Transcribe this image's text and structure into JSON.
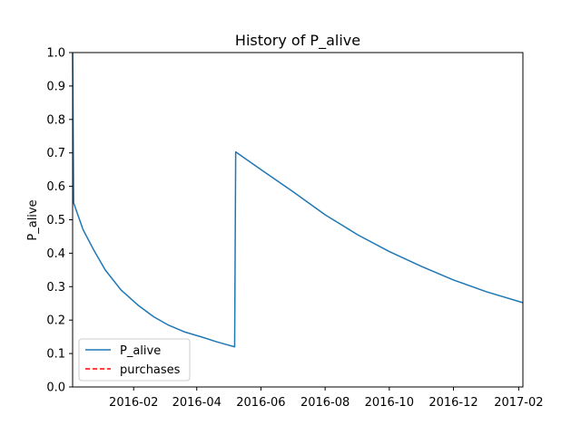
{
  "chart_data": {
    "type": "line",
    "title": "History of P_alive",
    "xlabel": "",
    "ylabel": "P_alive",
    "x_axis_type": "date",
    "xlim": [
      "2015-12-05",
      "2017-02-05"
    ],
    "ylim": [
      0,
      1
    ],
    "grid": false,
    "legend_position": "lower-left",
    "x_ticks": [
      {
        "date": "2016-02-01",
        "label": "2016-02"
      },
      {
        "date": "2016-04-01",
        "label": "2016-04"
      },
      {
        "date": "2016-06-01",
        "label": "2016-06"
      },
      {
        "date": "2016-08-01",
        "label": "2016-08"
      },
      {
        "date": "2016-10-01",
        "label": "2016-10"
      },
      {
        "date": "2016-12-01",
        "label": "2016-12"
      },
      {
        "date": "2017-02-01",
        "label": "2017-02"
      }
    ],
    "y_ticks": [
      {
        "value": 0.0,
        "label": "0.0"
      },
      {
        "value": 0.1,
        "label": "0.1"
      },
      {
        "value": 0.2,
        "label": "0.2"
      },
      {
        "value": 0.3,
        "label": "0.3"
      },
      {
        "value": 0.4,
        "label": "0.4"
      },
      {
        "value": 0.5,
        "label": "0.5"
      },
      {
        "value": 0.6,
        "label": "0.6"
      },
      {
        "value": 0.7,
        "label": "0.7"
      },
      {
        "value": 0.8,
        "label": "0.8"
      },
      {
        "value": 0.9,
        "label": "0.9"
      },
      {
        "value": 1.0,
        "label": "1.0"
      }
    ],
    "series": [
      {
        "name": "P_alive",
        "color": "#1f77b4",
        "style": "solid",
        "points": [
          {
            "x": "2015-12-05",
            "y": 1.0
          },
          {
            "x": "2015-12-06",
            "y": 0.55
          },
          {
            "x": "2015-12-15",
            "y": 0.47
          },
          {
            "x": "2015-12-25",
            "y": 0.41
          },
          {
            "x": "2016-01-05",
            "y": 0.35
          },
          {
            "x": "2016-01-20",
            "y": 0.29
          },
          {
            "x": "2016-02-05",
            "y": 0.245
          },
          {
            "x": "2016-02-20",
            "y": 0.21
          },
          {
            "x": "2016-03-05",
            "y": 0.185
          },
          {
            "x": "2016-03-20",
            "y": 0.165
          },
          {
            "x": "2016-04-05",
            "y": 0.15
          },
          {
            "x": "2016-04-20",
            "y": 0.135
          },
          {
            "x": "2016-05-07",
            "y": 0.12
          },
          {
            "x": "2016-05-08",
            "y": 0.703
          },
          {
            "x": "2016-06-01",
            "y": 0.65
          },
          {
            "x": "2016-07-01",
            "y": 0.585
          },
          {
            "x": "2016-08-01",
            "y": 0.515
          },
          {
            "x": "2016-09-01",
            "y": 0.455
          },
          {
            "x": "2016-10-01",
            "y": 0.405
          },
          {
            "x": "2016-11-01",
            "y": 0.36
          },
          {
            "x": "2016-12-01",
            "y": 0.32
          },
          {
            "x": "2017-01-01",
            "y": 0.285
          },
          {
            "x": "2017-02-05",
            "y": 0.252
          }
        ]
      },
      {
        "name": "purchases",
        "color": "#ff0000",
        "style": "dashed",
        "points": []
      }
    ]
  }
}
